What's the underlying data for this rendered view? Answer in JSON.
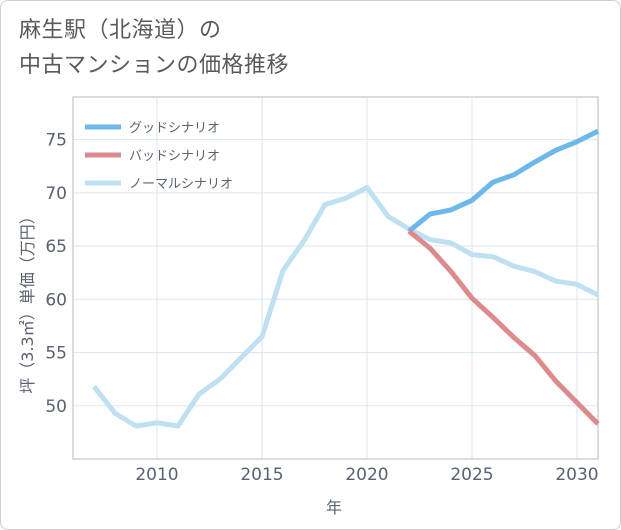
{
  "title": {
    "line1": "麻生駅（北海道）の",
    "line2": "中古マンションの価格推移"
  },
  "chart_data": {
    "type": "line",
    "xlabel": "年",
    "ylabel": "坪（3.3㎡）単価（万円）",
    "xlim": [
      2006,
      2031
    ],
    "ylim": [
      45,
      79
    ],
    "xticks": [
      2010,
      2015,
      2020,
      2025,
      2030
    ],
    "yticks": [
      50,
      55,
      60,
      65,
      70,
      75
    ],
    "grid": true,
    "legend_position": "top-left",
    "series": [
      {
        "name": "グッドシナリオ",
        "color": "#6cb8ea",
        "x": [
          2022,
          2023,
          2024,
          2025,
          2026,
          2027,
          2028,
          2029,
          2030,
          2031
        ],
        "values": [
          66.4,
          68.0,
          68.4,
          69.3,
          71.0,
          71.7,
          72.9,
          74.0,
          74.8,
          75.8
        ]
      },
      {
        "name": "バッドシナリオ",
        "color": "#dc8a8e",
        "x": [
          2022,
          2023,
          2024,
          2025,
          2026,
          2027,
          2028,
          2029,
          2030,
          2031
        ],
        "values": [
          66.4,
          64.8,
          62.6,
          60.1,
          58.3,
          56.4,
          54.7,
          52.3,
          50.3,
          48.3
        ]
      },
      {
        "name": "ノーマルシナリオ",
        "color": "#bfe0f0",
        "x": [
          2007,
          2008,
          2009,
          2010,
          2011,
          2012,
          2013,
          2014,
          2015,
          2016,
          2017,
          2018,
          2019,
          2020,
          2021,
          2022,
          2023,
          2024,
          2025,
          2026,
          2027,
          2028,
          2029,
          2030,
          2031
        ],
        "values": [
          51.8,
          49.3,
          48.1,
          48.4,
          48.1,
          51.1,
          52.5,
          54.5,
          56.5,
          62.7,
          65.5,
          68.9,
          69.5,
          70.5,
          67.8,
          66.6,
          65.6,
          65.3,
          64.2,
          64.0,
          63.1,
          62.6,
          61.7,
          61.4,
          60.4
        ]
      }
    ]
  }
}
